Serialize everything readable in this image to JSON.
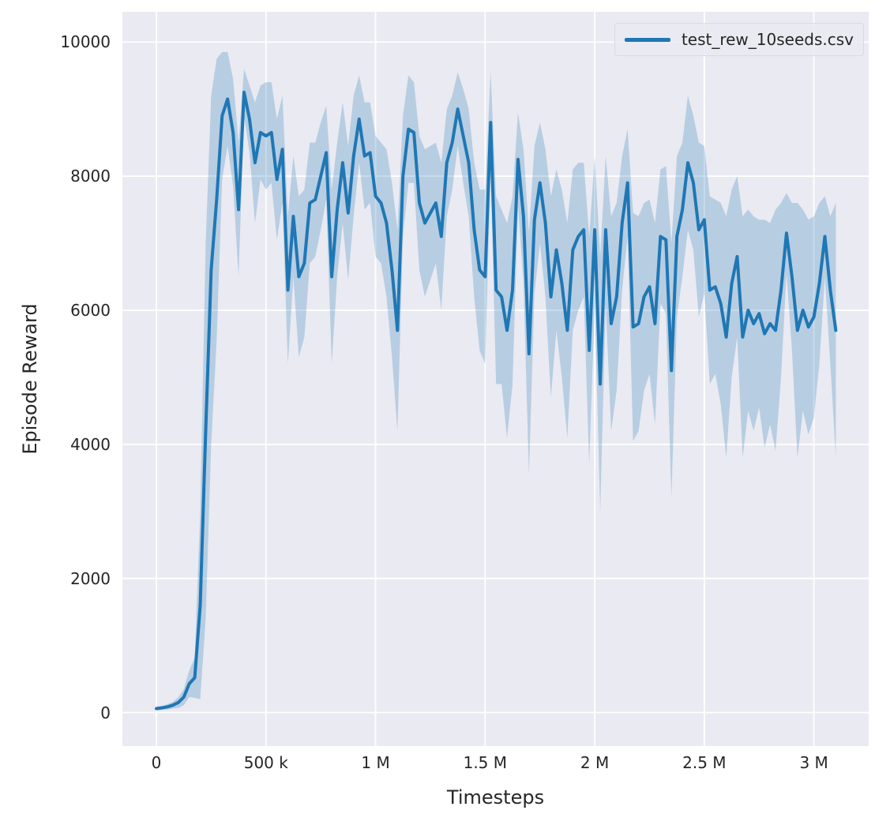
{
  "styles": {
    "plot_bg": "#eaeaf2",
    "grid_color": "#ffffff",
    "text_color": "#262626",
    "accent": "#1f77b4"
  },
  "chart_data": {
    "type": "line",
    "title": "",
    "xlabel": "Timesteps",
    "ylabel": "Episode Reward",
    "grid": true,
    "legend_position": "upper right",
    "xlim": [
      -155000,
      3250000
    ],
    "ylim": [
      -500,
      10450
    ],
    "x_ticks": [
      {
        "value": 0,
        "label": "0"
      },
      {
        "value": 500000,
        "label": "500 k"
      },
      {
        "value": 1000000,
        "label": "1 M"
      },
      {
        "value": 1500000,
        "label": "1.5 M"
      },
      {
        "value": 2000000,
        "label": "2 M"
      },
      {
        "value": 2500000,
        "label": "2.5 M"
      },
      {
        "value": 3000000,
        "label": "3 M"
      }
    ],
    "y_ticks": [
      {
        "value": 0,
        "label": "0"
      },
      {
        "value": 2000,
        "label": "2000"
      },
      {
        "value": 4000,
        "label": "4000"
      },
      {
        "value": 6000,
        "label": "6000"
      },
      {
        "value": 8000,
        "label": "8000"
      },
      {
        "value": 10000,
        "label": "10000"
      }
    ],
    "series": [
      {
        "name": "test_rew_10seeds.csv",
        "color": "#1f77b4",
        "line_width": 4,
        "band_alpha": 0.25,
        "x_start": 0,
        "x_step": 25000,
        "values": [
          60,
          70,
          85,
          110,
          150,
          230,
          430,
          520,
          1600,
          4200,
          6600,
          7650,
          8900,
          9150,
          8650,
          7500,
          9250,
          8850,
          8200,
          8650,
          8600,
          8650,
          7950,
          8400,
          6300,
          7400,
          6500,
          6700,
          7600,
          7650,
          8000,
          8350,
          6500,
          7500,
          8200,
          7450,
          8300,
          8850,
          8300,
          8350,
          7700,
          7600,
          7300,
          6600,
          5700,
          8000,
          8700,
          8650,
          7600,
          7300,
          7450,
          7600,
          7100,
          8200,
          8500,
          9000,
          8600,
          8200,
          7200,
          6600,
          6500,
          8800,
          6300,
          6200,
          5700,
          6300,
          8250,
          7400,
          5350,
          7350,
          7900,
          7300,
          6200,
          6900,
          6400,
          5700,
          6900,
          7100,
          7200,
          5400,
          7200,
          4900,
          7200,
          5800,
          6200,
          7300,
          7900,
          5750,
          5800,
          6200,
          6350,
          5800,
          7100,
          7050,
          5100,
          7100,
          7500,
          8200,
          7900,
          7200,
          7350,
          6300,
          6350,
          6100,
          5600,
          6400,
          6800,
          5600,
          6000,
          5800,
          5950,
          5650,
          5800,
          5700,
          6300,
          7150,
          6500,
          5700,
          6000,
          5750,
          5900,
          6400,
          7100,
          6300,
          5700
        ],
        "band_halfwidth": [
          30,
          30,
          40,
          50,
          80,
          120,
          200,
          300,
          1400,
          2800,
          2600,
          2100,
          950,
          700,
          800,
          1000,
          350,
          500,
          900,
          700,
          800,
          750,
          900,
          800,
          1100,
          900,
          1200,
          1100,
          900,
          850,
          800,
          700,
          1300,
          1000,
          900,
          1000,
          900,
          650,
          800,
          750,
          900,
          900,
          1100,
          1300,
          1500,
          900,
          800,
          750,
          1000,
          1100,
          1000,
          900,
          1100,
          800,
          700,
          550,
          700,
          800,
          1000,
          1200,
          1300,
          750,
          1400,
          1300,
          1600,
          1400,
          700,
          1000,
          1800,
          1100,
          900,
          1100,
          1500,
          1200,
          1400,
          1600,
          1200,
          1100,
          1000,
          1700,
          1100,
          1900,
          1100,
          1600,
          1400,
          1000,
          800,
          1700,
          1600,
          1400,
          1300,
          1500,
          1000,
          1100,
          1900,
          1200,
          1000,
          1000,
          1000,
          1300,
          1100,
          1400,
          1300,
          1500,
          1800,
          1400,
          1200,
          1800,
          1500,
          1600,
          1400,
          1700,
          1500,
          1800,
          1300,
          600,
          1100,
          1900,
          1500,
          1600,
          1500,
          1200,
          600,
          1100,
          1900
        ]
      }
    ]
  }
}
